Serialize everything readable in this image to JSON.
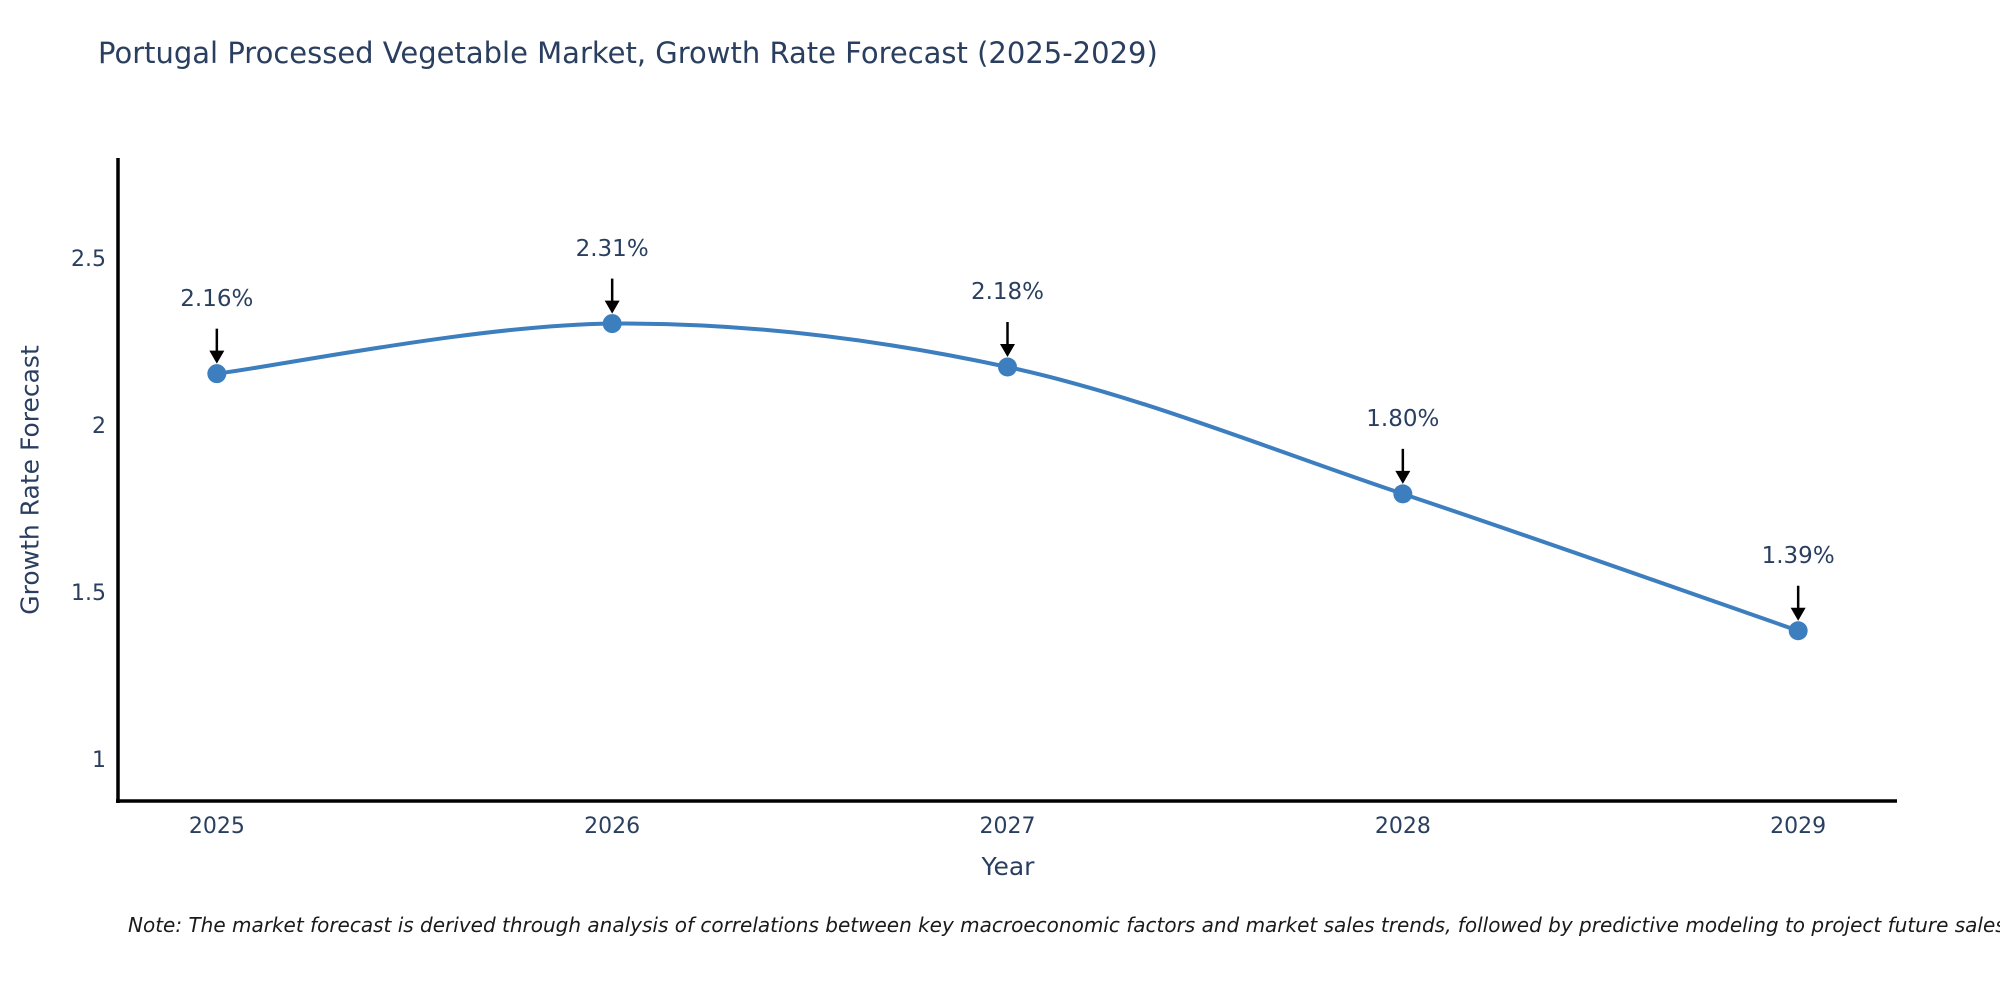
{
  "title": "Portugal Processed Vegetable Market, Growth Rate Forecast (2025-2029)",
  "note": "Note: The market forecast is derived through analysis of correlations between key macroeconomic factors and market sales trends, followed by predictive modeling to project future sales",
  "chart_data": {
    "type": "line",
    "title": "Portugal Processed Vegetable Market, Growth Rate Forecast (2025-2029)",
    "xlabel": "Year",
    "ylabel": "Growth Rate Forecast",
    "x": [
      2025,
      2026,
      2027,
      2028,
      2029
    ],
    "values": [
      2.16,
      2.31,
      2.18,
      1.8,
      1.39
    ],
    "point_labels": [
      "2.16%",
      "2.31%",
      "2.18%",
      "1.80%",
      "1.39%"
    ],
    "yticks": [
      1,
      1.5,
      2,
      2.5
    ],
    "ylim": [
      0.88,
      2.8
    ],
    "xlim": [
      2024.75,
      2029.25
    ],
    "line_shape": "spline",
    "grid": false,
    "legend": "none",
    "colors": {
      "line": "#3d7ebf",
      "marker": "#3d7ebf",
      "axis": "#000000",
      "annotation_arrow": "#000000",
      "text": "#2a3f5f",
      "note_text": "#1a1a1a"
    }
  }
}
